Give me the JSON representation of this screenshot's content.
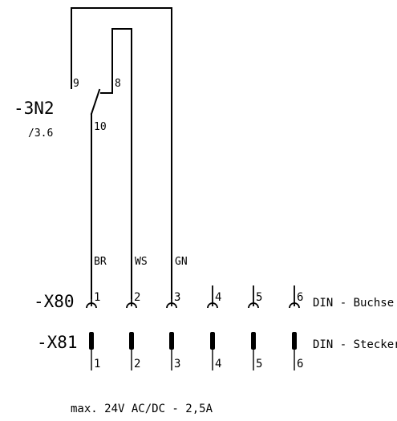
{
  "relay": {
    "designation": "-3N2",
    "reference": "/3.6",
    "terminals": {
      "t9": "9",
      "t8": "8",
      "t10": "10"
    }
  },
  "wire_colors": {
    "br": "BR",
    "ws": "WS",
    "gn": "GN"
  },
  "x80": {
    "designation": "-X80",
    "description": "DIN - Buchse",
    "pins": [
      "1",
      "2",
      "3",
      "4",
      "5",
      "6"
    ]
  },
  "x81": {
    "designation": "-X81",
    "description": "DIN - Stecker",
    "pins": [
      "1",
      "2",
      "3",
      "4",
      "5",
      "6"
    ]
  },
  "rating": "max. 24V AC/DC - 2,5A"
}
